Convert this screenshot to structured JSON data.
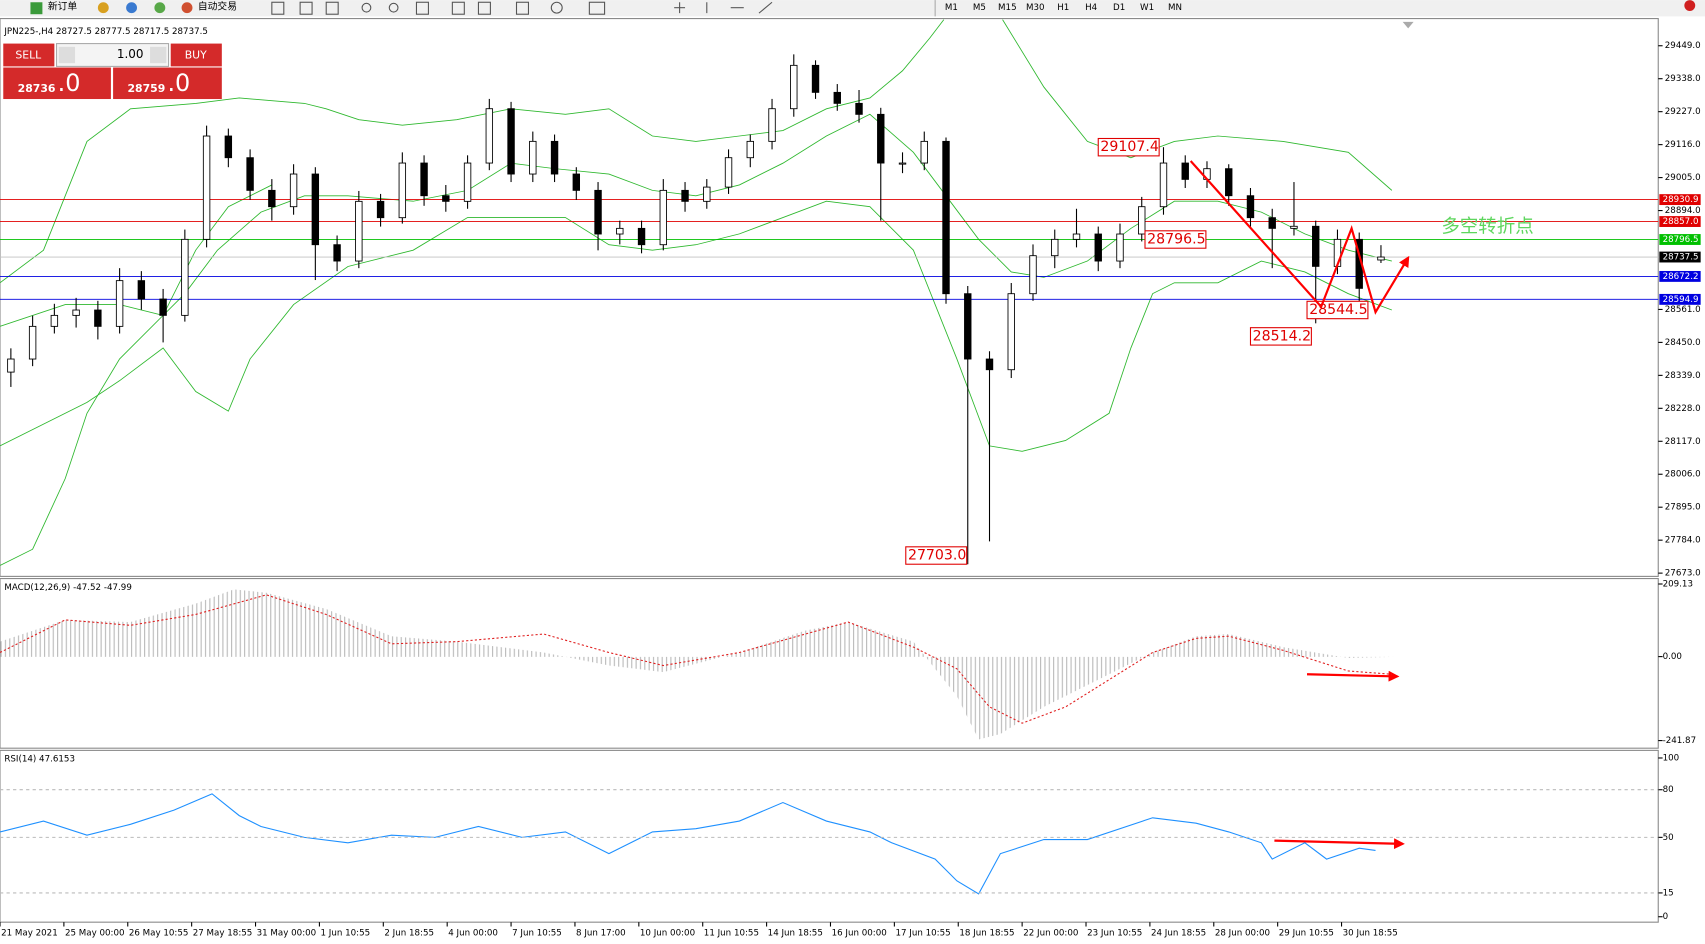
{
  "toolbar": {
    "new_order": "新订单",
    "auto_trading": "自动交易",
    "timeframes": [
      "M1",
      "M5",
      "M15",
      "M30",
      "H1",
      "H4",
      "D1",
      "W1",
      "MN"
    ]
  },
  "trade_panel": {
    "sell": "SELL",
    "buy": "BUY",
    "lot": "1.00",
    "bid_main": "28736",
    "bid_big": ".0",
    "ask_main": "28759",
    "ask_big": ".0"
  },
  "chart": {
    "header": "JPN225-,H4  28727.5 28777.5 28717.5 28737.5",
    "price_range": [
      27673,
      29449
    ],
    "price_axis": [
      {
        "value": 29449,
        "label": "29449.0"
      },
      {
        "value": 29338,
        "label": "29338.0"
      },
      {
        "value": 29227,
        "label": "29227.0"
      },
      {
        "value": 29116,
        "label": "29116.0"
      },
      {
        "value": 29005,
        "label": "29005.0"
      },
      {
        "value": 28894,
        "label": "28894.0"
      },
      {
        "value": 28561,
        "label": "28561.0"
      },
      {
        "value": 28450,
        "label": "28450.0"
      },
      {
        "value": 28339,
        "label": "28339.0"
      },
      {
        "value": 28228,
        "label": "28228.0"
      },
      {
        "value": 28117,
        "label": "28117.0"
      },
      {
        "value": 28006,
        "label": "28006.0"
      },
      {
        "value": 27895,
        "label": "27895.0"
      },
      {
        "value": 27784,
        "label": "27784.0"
      },
      {
        "value": 27673,
        "label": "27673.0"
      }
    ],
    "price_lines": [
      {
        "value": 28930.9,
        "color": "#e00000"
      },
      {
        "value": {
          "value": 28857,
          "label": "28857.0"
        },
        "color": "#e00000"
      },
      {
        "value": 28796.5,
        "color": "#00c000"
      },
      {
        "value": 28737.5,
        "color": "#000000"
      },
      {
        "value": 28672.2,
        "color": "#0000e0"
      },
      {
        "value": 28594.9,
        "color": "#0000e0"
      }
    ],
    "candles": [
      [
        28350,
        28430,
        28300,
        28394
      ],
      [
        28394,
        28540,
        28370,
        28504
      ],
      [
        28504,
        28580,
        28480,
        28541
      ],
      [
        28541,
        28600,
        28500,
        28559
      ],
      [
        28559,
        28590,
        28460,
        28504
      ],
      [
        28504,
        28700,
        28480,
        28658
      ],
      [
        28658,
        28690,
        28560,
        28596
      ],
      [
        28596,
        28630,
        28450,
        28541
      ],
      [
        28541,
        28830,
        28520,
        28797
      ],
      [
        28797,
        29180,
        28770,
        29145
      ],
      [
        29145,
        29170,
        29040,
        29072
      ],
      [
        29072,
        29100,
        28930,
        28962
      ],
      [
        28962,
        29000,
        28860,
        28907
      ],
      [
        28907,
        29050,
        28880,
        29017
      ],
      [
        29017,
        29040,
        28660,
        28779
      ],
      [
        28779,
        28810,
        28690,
        28724
      ],
      [
        28724,
        28960,
        28700,
        28925
      ],
      [
        28925,
        28950,
        28840,
        28870
      ],
      [
        28870,
        29090,
        28850,
        29054
      ],
      [
        29054,
        29080,
        28910,
        28944
      ],
      [
        28944,
        28980,
        28890,
        28925
      ],
      [
        28925,
        29080,
        28900,
        29054
      ],
      [
        29054,
        29270,
        29030,
        29237
      ],
      [
        29237,
        29260,
        28990,
        29017
      ],
      [
        29017,
        29160,
        28990,
        29127
      ],
      [
        29127,
        29150,
        28990,
        29017
      ],
      [
        29017,
        29040,
        28930,
        28962
      ],
      [
        28962,
        28990,
        28760,
        28815
      ],
      [
        28815,
        28860,
        28780,
        28834
      ],
      [
        28834,
        28860,
        28750,
        28779
      ],
      [
        28779,
        29000,
        28760,
        28962
      ],
      [
        28962,
        28990,
        28890,
        28925
      ],
      [
        28925,
        29000,
        28900,
        28973
      ],
      [
        28973,
        29100,
        28950,
        29072
      ],
      [
        29072,
        29150,
        29040,
        29127
      ],
      [
        29127,
        29270,
        29100,
        29237
      ],
      [
        29237,
        29420,
        29210,
        29383
      ],
      [
        29383,
        29400,
        29270,
        29292
      ],
      [
        29292,
        29320,
        29230,
        29255
      ],
      [
        29255,
        29300,
        29190,
        29218
      ],
      [
        29218,
        29240,
        28860,
        29054
      ],
      [
        29054,
        29090,
        29020,
        29054
      ],
      [
        29054,
        29160,
        29030,
        29127
      ],
      [
        29127,
        29140,
        28580,
        28614
      ],
      [
        28614,
        28640,
        27703,
        28394
      ],
      [
        28394,
        28420,
        27780,
        28358
      ],
      [
        28358,
        28650,
        28330,
        28614
      ],
      [
        28614,
        28780,
        28590,
        28742
      ],
      [
        28742,
        28830,
        28700,
        28797
      ],
      [
        28797,
        28900,
        28770,
        28815
      ],
      [
        28815,
        28840,
        28690,
        28724
      ],
      [
        28724,
        28850,
        28700,
        28815
      ],
      [
        28815,
        28940,
        28790,
        28907
      ],
      [
        28907,
        29107.4,
        28880,
        29054
      ],
      [
        29054,
        29080,
        28970,
        28999
      ],
      [
        28999,
        29060,
        28970,
        29035
      ],
      [
        29035,
        29050,
        28910,
        28944
      ],
      [
        28944,
        28970,
        28840,
        28870
      ],
      [
        28870,
        28900,
        28700,
        28834
      ],
      [
        28834,
        28990,
        28810,
        28841
      ],
      [
        28841,
        28860,
        28514.2,
        28706
      ],
      [
        28706,
        28830,
        28680,
        28797
      ],
      [
        28797,
        28820,
        28544.5,
        28632
      ],
      [
        28727.5,
        28777.5,
        28717.5,
        28737.5
      ]
    ],
    "annotations": [
      29107.4,
      28796.5,
      28514.2,
      28544.5,
      {
        "value": 27703,
        "label": "27703.0"
      }
    ],
    "note": "多空转折点",
    "dates": [
      "21 May 2021",
      "25 May 00:00",
      "26 May 10:55",
      "27 May 18:55",
      "31 May 00:00",
      "1 Jun 10:55",
      "2 Jun 18:55",
      "4 Jun 00:00",
      "7 Jun 10:55",
      "8 Jun 17:00",
      "10 Jun 00:00",
      "11 Jun 10:55",
      "14 Jun 18:55",
      "16 Jun 00:00",
      "17 Jun 10:55",
      "18 Jun 18:55",
      "22 Jun 00:00",
      "23 Jun 10:55",
      "24 Jun 18:55",
      "28 Jun 00:00",
      "29 Jun 10:55",
      "30 Jun 18:55"
    ]
  },
  "macd": {
    "label": "MACD(12,26,9) -47.52 -47.99",
    "range": [
      -241.87,
      209.13
    ],
    "axis": [
      209.13,
      {
        "value": 0,
        "label": "0.00"
      },
      -241.87
    ]
  },
  "rsi": {
    "label": "RSI(14) 47.6153",
    "range": [
      0,
      100
    ],
    "axis": [
      100,
      80,
      50,
      15,
      0
    ]
  }
}
